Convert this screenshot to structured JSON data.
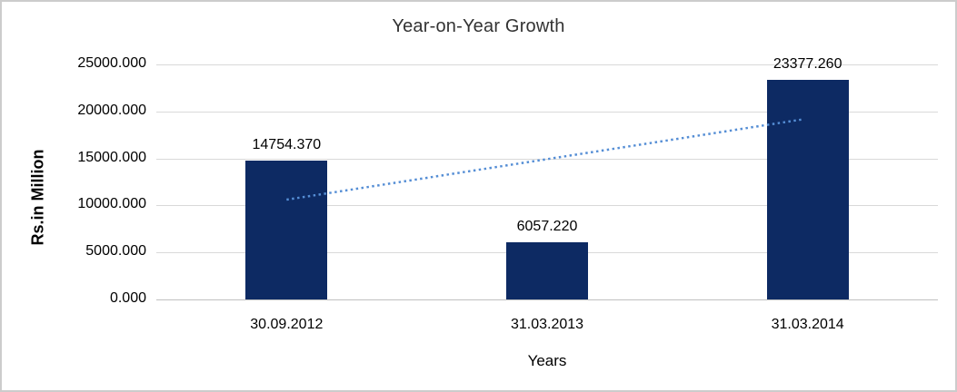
{
  "window": {
    "background_color": "#ffffff",
    "border_color": "#cccccc"
  },
  "chart_data": {
    "type": "bar",
    "title": "Year-on-Year Growth",
    "xlabel": "Years",
    "ylabel": "Rs.in Million",
    "categories": [
      "30.09.2012",
      "31.03.2013",
      "31.03.2014"
    ],
    "values": [
      14754.37,
      6057.22,
      23377.26
    ],
    "data_labels": [
      "14754.370",
      "6057.220",
      "23377.260"
    ],
    "ylim": [
      0,
      25000
    ],
    "ytick_interval": 5000,
    "ytick_labels": [
      "0.000",
      "5000.000",
      "10000.000",
      "15000.000",
      "20000.000",
      "25000.000"
    ],
    "grid": true,
    "legend": "none",
    "bar_color": "#0d2a63",
    "gridline_color": "#d9d9d9",
    "label_color": "#000000",
    "title_color": "#333333",
    "trendline": {
      "style": "dotted",
      "color": "#558ED5",
      "start_value": 10418,
      "end_value": 19041,
      "start_category": "30.09.2012",
      "end_category": "31.03.2014"
    }
  }
}
